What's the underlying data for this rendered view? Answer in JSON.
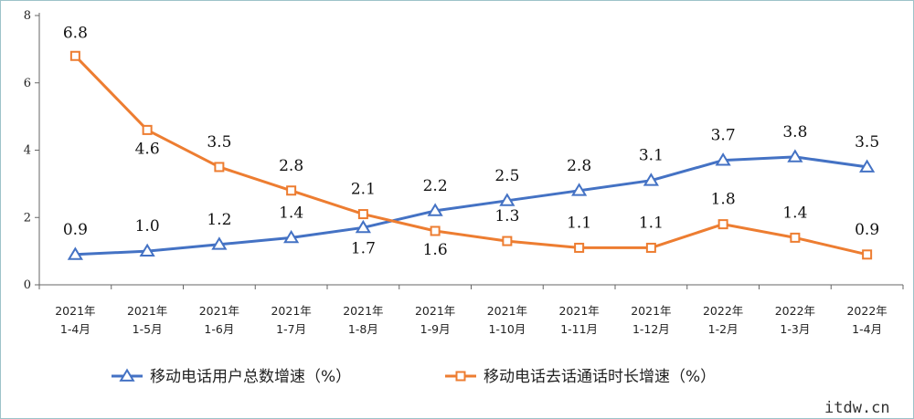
{
  "chart_data": {
    "type": "line",
    "title": "",
    "xlabel": "",
    "ylabel": "",
    "ylim": [
      0,
      8
    ],
    "yticks": [
      0,
      2,
      4,
      6,
      8
    ],
    "grid": false,
    "legend_position": "bottom",
    "categories": [
      [
        "2021年",
        "1-4月"
      ],
      [
        "2021年",
        "1-5月"
      ],
      [
        "2021年",
        "1-6月"
      ],
      [
        "2021年",
        "1-7月"
      ],
      [
        "2021年",
        "1-8月"
      ],
      [
        "2021年",
        "1-9月"
      ],
      [
        "2021年",
        "1-10月"
      ],
      [
        "2021年",
        "1-11月"
      ],
      [
        "2021年",
        "1-12月"
      ],
      [
        "2022年",
        "1-2月"
      ],
      [
        "2022年",
        "1-3月"
      ],
      [
        "2022年",
        "1-4月"
      ]
    ],
    "series": [
      {
        "name": "移动电话用户总数增速（%）",
        "color": "#4472c4",
        "marker": "triangle",
        "values": [
          0.9,
          1.0,
          1.2,
          1.4,
          1.7,
          2.2,
          2.5,
          2.8,
          3.1,
          3.7,
          3.8,
          3.5
        ],
        "labels": [
          "0.9",
          "1.0",
          "1.2",
          "1.4",
          "1.7",
          "2.2",
          "2.5",
          "2.8",
          "3.1",
          "3.7",
          "3.8",
          "3.5"
        ]
      },
      {
        "name": "移动电话去话通话时长增速（%）",
        "color": "#ed7d31",
        "marker": "square",
        "values": [
          6.8,
          4.6,
          3.5,
          2.8,
          2.1,
          1.6,
          1.3,
          1.1,
          1.1,
          1.8,
          1.4,
          0.9
        ],
        "labels": [
          "6.8",
          "4.6",
          "3.5",
          "2.8",
          "2.1",
          "1.6",
          "1.3",
          "1.1",
          "1.1",
          "1.8",
          "1.4",
          "0.9"
        ]
      }
    ]
  },
  "watermark": "itdw.cn"
}
